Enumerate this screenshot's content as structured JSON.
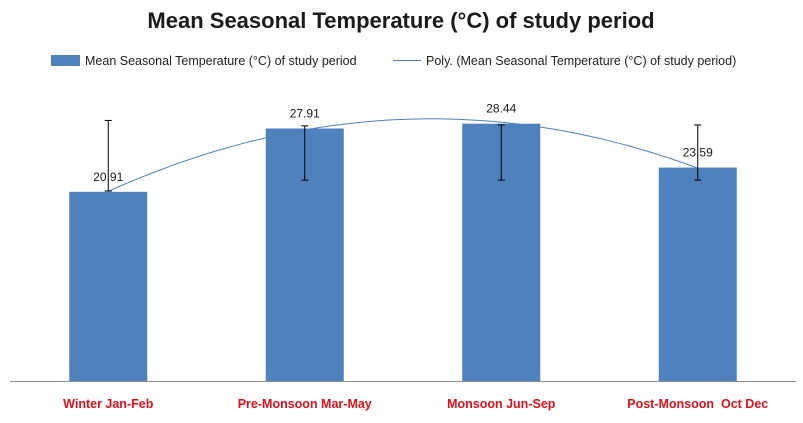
{
  "chart_data": {
    "type": "bar",
    "title": "Mean Seasonal Temperature (°C) of study period",
    "categories": [
      "Winter Jan-Feb",
      "Pre-Monsoon Mar-May",
      "Monsoon Jun-Sep",
      "Post-Monsoon  Oct Dec"
    ],
    "series": [
      {
        "name": "Mean Seasonal Temperature (°C) of study period",
        "values": [
          20.91,
          27.91,
          28.44,
          23.59
        ],
        "data_labels": [
          "20.91",
          "27.91",
          "28.44",
          "23.59"
        ],
        "error_low": [
          21.0,
          22.2,
          22.2,
          22.2
        ],
        "error_high": [
          28.8,
          28.2,
          28.3,
          28.3
        ],
        "color": "#4f81bd"
      }
    ],
    "trendline": {
      "name": "Poly. (Mean Seasonal Temperature (°C) of study period)",
      "type": "polynomial",
      "order": 2,
      "color": "#4f81bd"
    },
    "ylim": [
      0,
      31.5
    ],
    "grid": false,
    "legend": "top",
    "category_label_color": "#e0101a",
    "xlabel": "",
    "ylabel": ""
  }
}
